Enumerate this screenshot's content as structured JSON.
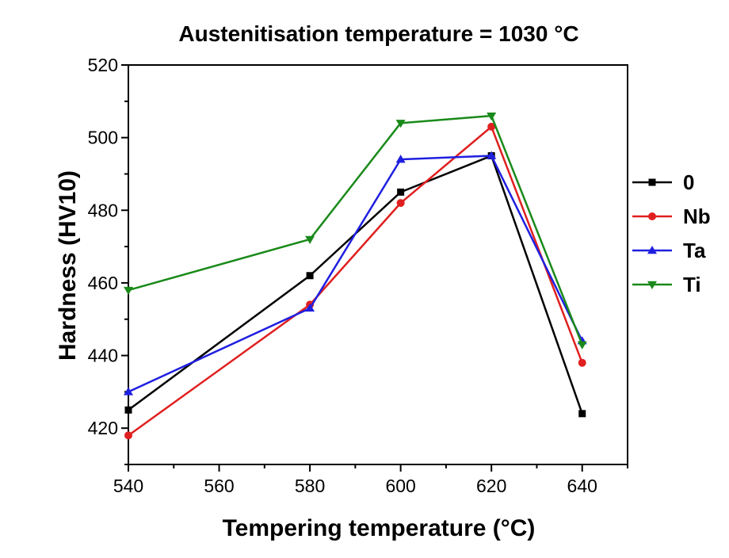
{
  "chart_data": {
    "type": "line",
    "title": "Austenitisation temperature = 1030 °C",
    "xlabel": "Tempering temperature (°C)",
    "ylabel": "Hardness (HV10)",
    "xlim": [
      540,
      650
    ],
    "ylim": [
      410,
      520
    ],
    "xticks": [
      540,
      560,
      580,
      600,
      620,
      640
    ],
    "yticks": [
      420,
      440,
      460,
      480,
      500,
      520
    ],
    "x": [
      540,
      580,
      600,
      620,
      640
    ],
    "legend_position": "right",
    "grid": false,
    "series": [
      {
        "name": "0",
        "color": "#000000",
        "marker": "square",
        "values": [
          425,
          462,
          485,
          495,
          424
        ]
      },
      {
        "name": "Nb",
        "color": "#e02020",
        "marker": "circle",
        "values": [
          418,
          454,
          482,
          503,
          438
        ]
      },
      {
        "name": "Ta",
        "color": "#1f1fe0",
        "marker": "triangle-up",
        "values": [
          430,
          453,
          494,
          495,
          444
        ]
      },
      {
        "name": "Ti",
        "color": "#1a8a1a",
        "marker": "triangle-down",
        "values": [
          458,
          472,
          504,
          506,
          443
        ]
      }
    ]
  }
}
